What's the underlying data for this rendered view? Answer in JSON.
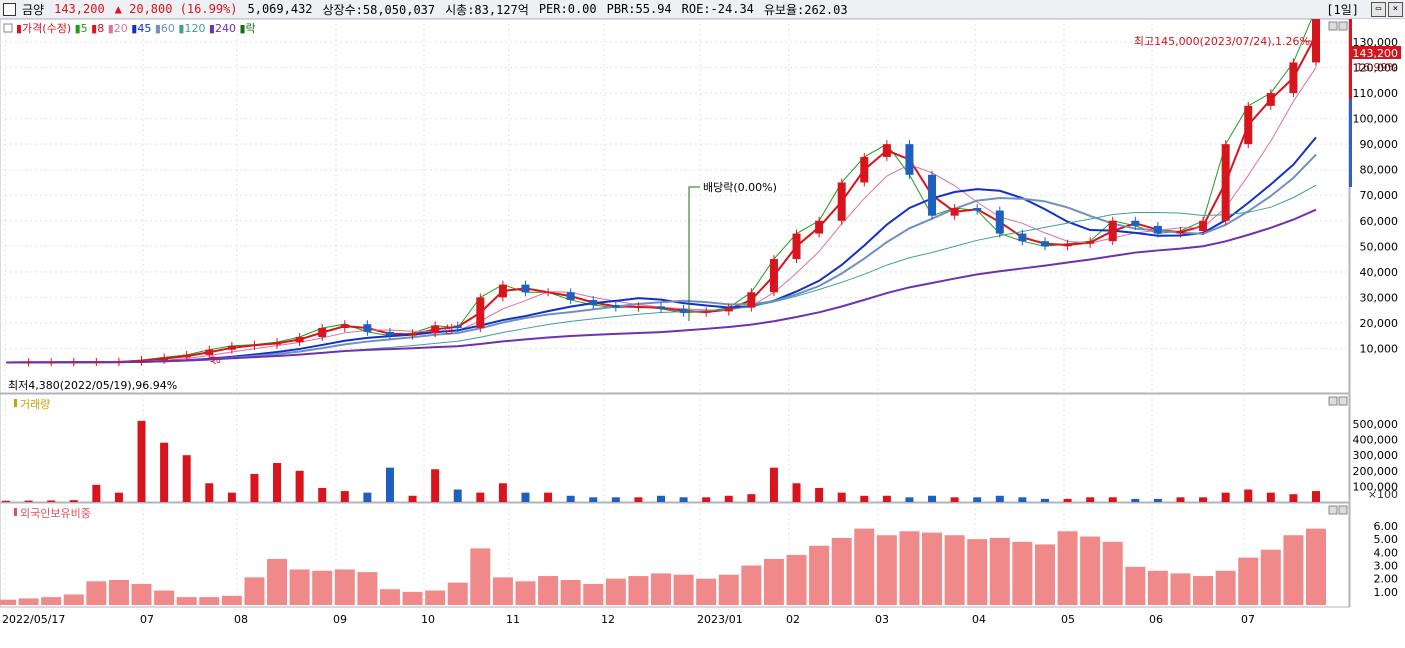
{
  "header": {
    "stock_name": "금양",
    "price": "143,200",
    "change": "▲ 20,800 (16.99%)",
    "volume": "5,069,432",
    "listed_shares": "상장수:58,050,037",
    "market_cap": "시총:83,127억",
    "per": "PER:0.00",
    "pbr": "PBR:55.94",
    "roe": "ROE:-24.34",
    "float_ratio": "유보율:262.03",
    "period": "[1일]"
  },
  "price_panel": {
    "legend": [
      {
        "label": "가격(수정)",
        "color": "#d8141c"
      },
      {
        "label": "5",
        "color": "#1aa01a"
      },
      {
        "label": "8",
        "color": "#d8141c"
      },
      {
        "label": "20",
        "color": "#e070a0"
      },
      {
        "label": "45",
        "color": "#1030c8"
      },
      {
        "label": "60",
        "color": "#7090c0"
      },
      {
        "label": "120",
        "color": "#40a090"
      },
      {
        "label": "240",
        "color": "#7030b0"
      },
      {
        "label": "락",
        "color": "#107010"
      }
    ],
    "high_note": "최고145,000(2023/07/24),1.26%",
    "low_note": "최저4,380(2022/05/19),96.94%",
    "dividend_note": "배당락(0.00%)",
    "limit_up_marks": [
      "상",
      "상",
      "상"
    ],
    "current_price_tag": "143,200",
    "current_change_tag": "16.99%",
    "y_ticks": [
      "130,000",
      "120,000",
      "110,000",
      "100,000",
      "90,000",
      "80,000",
      "70,000",
      "60,000",
      "50,000",
      "40,000",
      "30,000",
      "20,000",
      "10,000"
    ]
  },
  "volume_panel": {
    "legend": "거래량",
    "y_ticks": [
      "500,000",
      "400,000",
      "300,000",
      "200,000",
      "100,000"
    ],
    "unit": "×100"
  },
  "foreign_panel": {
    "legend": "외국인보유비중",
    "y_ticks": [
      "6.00",
      "5.00",
      "4.00",
      "3.00",
      "2.00",
      "1.00"
    ]
  },
  "x_axis": [
    "2022/05/17",
    "07",
    "08",
    "09",
    "10",
    "11",
    "12",
    "2023/01",
    "02",
    "03",
    "04",
    "05",
    "06",
    "07"
  ],
  "colors": {
    "up": "#d8141c",
    "down": "#1f5fc0",
    "foreign_bar": "#f08a8a"
  },
  "chart_data": {
    "type": "candlestick",
    "price_close_trend": [
      4500,
      4600,
      4600,
      4700,
      4700,
      4800,
      5500,
      6500,
      7500,
      9500,
      11000,
      11500,
      12500,
      14500,
      18000,
      19500,
      16500,
      15000,
      16000,
      19000,
      18000,
      30000,
      35000,
      32000,
      32000,
      29000,
      27000,
      26000,
      26500,
      25500,
      24000,
      24500,
      26000,
      32000,
      45000,
      55000,
      60000,
      75000,
      85000,
      90000,
      78000,
      62000,
      65000,
      64000,
      55000,
      52000,
      50000,
      51000,
      52000,
      60000,
      58000,
      55000,
      56000,
      60000,
      90000,
      105000,
      110000,
      122000,
      143200
    ],
    "volume_trend": [
      8000,
      9000,
      10000,
      12000,
      110000,
      60000,
      520000,
      380000,
      300000,
      120000,
      60000,
      180000,
      250000,
      200000,
      90000,
      70000,
      60000,
      220000,
      40000,
      210000,
      80000,
      60000,
      120000,
      60000,
      60000,
      40000,
      30000,
      30000,
      30000,
      40000,
      30000,
      30000,
      40000,
      50000,
      220000,
      120000,
      90000,
      60000,
      40000,
      40000,
      30000,
      40000,
      30000,
      30000,
      40000,
      30000,
      20000,
      20000,
      30000,
      30000,
      20000,
      20000,
      30000,
      30000,
      60000,
      80000,
      60000,
      50000,
      70000
    ],
    "foreign_ratio_trend": [
      0.4,
      0.5,
      0.6,
      0.8,
      1.8,
      1.9,
      1.6,
      1.1,
      0.6,
      0.6,
      0.7,
      2.1,
      3.5,
      2.7,
      2.6,
      2.7,
      2.5,
      1.2,
      1.0,
      1.1,
      1.7,
      4.3,
      2.1,
      1.8,
      2.2,
      1.9,
      1.6,
      2.0,
      2.2,
      2.4,
      2.3,
      2.0,
      2.3,
      3.0,
      3.5,
      3.8,
      4.5,
      5.1,
      5.8,
      5.3,
      5.6,
      5.5,
      5.3,
      5.0,
      5.1,
      4.8,
      4.6,
      5.6,
      5.2,
      4.8,
      2.9,
      2.6,
      2.4,
      2.2,
      2.6,
      3.6,
      4.2,
      5.3,
      5.8
    ]
  }
}
